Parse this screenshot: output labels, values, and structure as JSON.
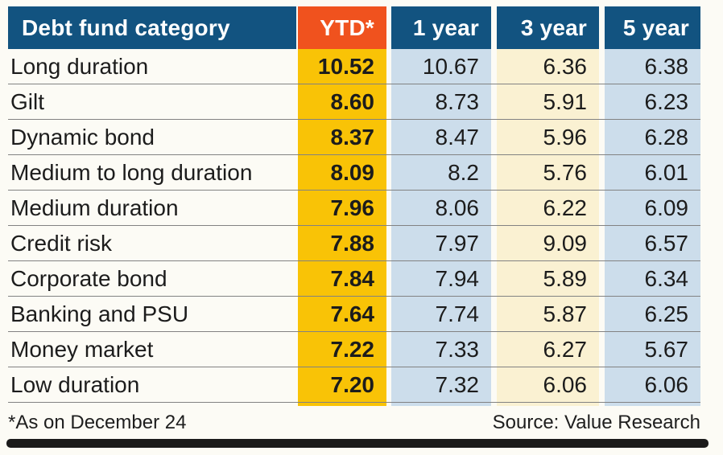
{
  "chart_data": {
    "type": "table",
    "columns": [
      "Debt fund category",
      "YTD*",
      "1 year",
      "3 year",
      "5 year"
    ],
    "rows": [
      {
        "category": "Long duration",
        "values": [
          10.52,
          10.67,
          6.36,
          6.38
        ]
      },
      {
        "category": "Gilt",
        "values": [
          8.6,
          8.73,
          5.91,
          6.23
        ]
      },
      {
        "category": "Dynamic bond",
        "values": [
          8.37,
          8.47,
          5.96,
          6.28
        ]
      },
      {
        "category": "Medium to long duration",
        "values": [
          8.09,
          8.2,
          5.76,
          6.01
        ]
      },
      {
        "category": "Medium duration",
        "values": [
          7.96,
          8.06,
          6.22,
          6.09
        ]
      },
      {
        "category": "Credit risk",
        "values": [
          7.88,
          7.97,
          9.09,
          6.57
        ]
      },
      {
        "category": "Corporate bond",
        "values": [
          7.84,
          7.94,
          5.89,
          6.34
        ]
      },
      {
        "category": "Banking and PSU",
        "values": [
          7.64,
          7.74,
          5.87,
          6.25
        ]
      },
      {
        "category": "Money market",
        "values": [
          7.22,
          7.33,
          6.27,
          5.67
        ]
      },
      {
        "category": "Low duration",
        "values": [
          7.2,
          7.32,
          6.06,
          6.06
        ]
      }
    ],
    "footnote": "*As on December 24",
    "source": "Source: Value Research",
    "legend_position": "none",
    "grid": "row-separators"
  },
  "header": {
    "category": "Debt fund category",
    "ytd": "YTD*",
    "y1": "1 year",
    "y3": "3 year",
    "y5": "5 year"
  },
  "rows": [
    {
      "category": "Long duration",
      "ytd": "10.52",
      "y1": "10.67",
      "y3": "6.36",
      "y5": "6.38"
    },
    {
      "category": "Gilt",
      "ytd": "8.60",
      "y1": "8.73",
      "y3": "5.91",
      "y5": "6.23"
    },
    {
      "category": "Dynamic bond",
      "ytd": "8.37",
      "y1": "8.47",
      "y3": "5.96",
      "y5": "6.28"
    },
    {
      "category": "Medium to long duration",
      "ytd": "8.09",
      "y1": "8.2",
      "y3": "5.76",
      "y5": "6.01"
    },
    {
      "category": "Medium duration",
      "ytd": "7.96",
      "y1": "8.06",
      "y3": "6.22",
      "y5": "6.09"
    },
    {
      "category": "Credit risk",
      "ytd": "7.88",
      "y1": "7.97",
      "y3": "9.09",
      "y5": "6.57"
    },
    {
      "category": "Corporate bond",
      "ytd": "7.84",
      "y1": "7.94",
      "y3": "5.89",
      "y5": "6.34"
    },
    {
      "category": "Banking and PSU",
      "ytd": "7.64",
      "y1": "7.74",
      "y3": "5.87",
      "y5": "6.25"
    },
    {
      "category": "Money market",
      "ytd": "7.22",
      "y1": "7.33",
      "y3": "6.27",
      "y5": "5.67"
    },
    {
      "category": "Low duration",
      "ytd": "7.20",
      "y1": "7.32",
      "y3": "6.06",
      "y5": "6.06"
    }
  ],
  "footer": {
    "note": "*As on December 24",
    "source": "Source: Value Research"
  },
  "colors": {
    "header_blue": "#125380",
    "ytd_header_orange": "#F0521E",
    "ytd_gold": "#F9C306",
    "cell_light_blue": "#CCDDEB",
    "cell_cream": "#FAF1D2",
    "separator_gray": "#828282",
    "bottom_bar_black": "#1B1B1B"
  }
}
